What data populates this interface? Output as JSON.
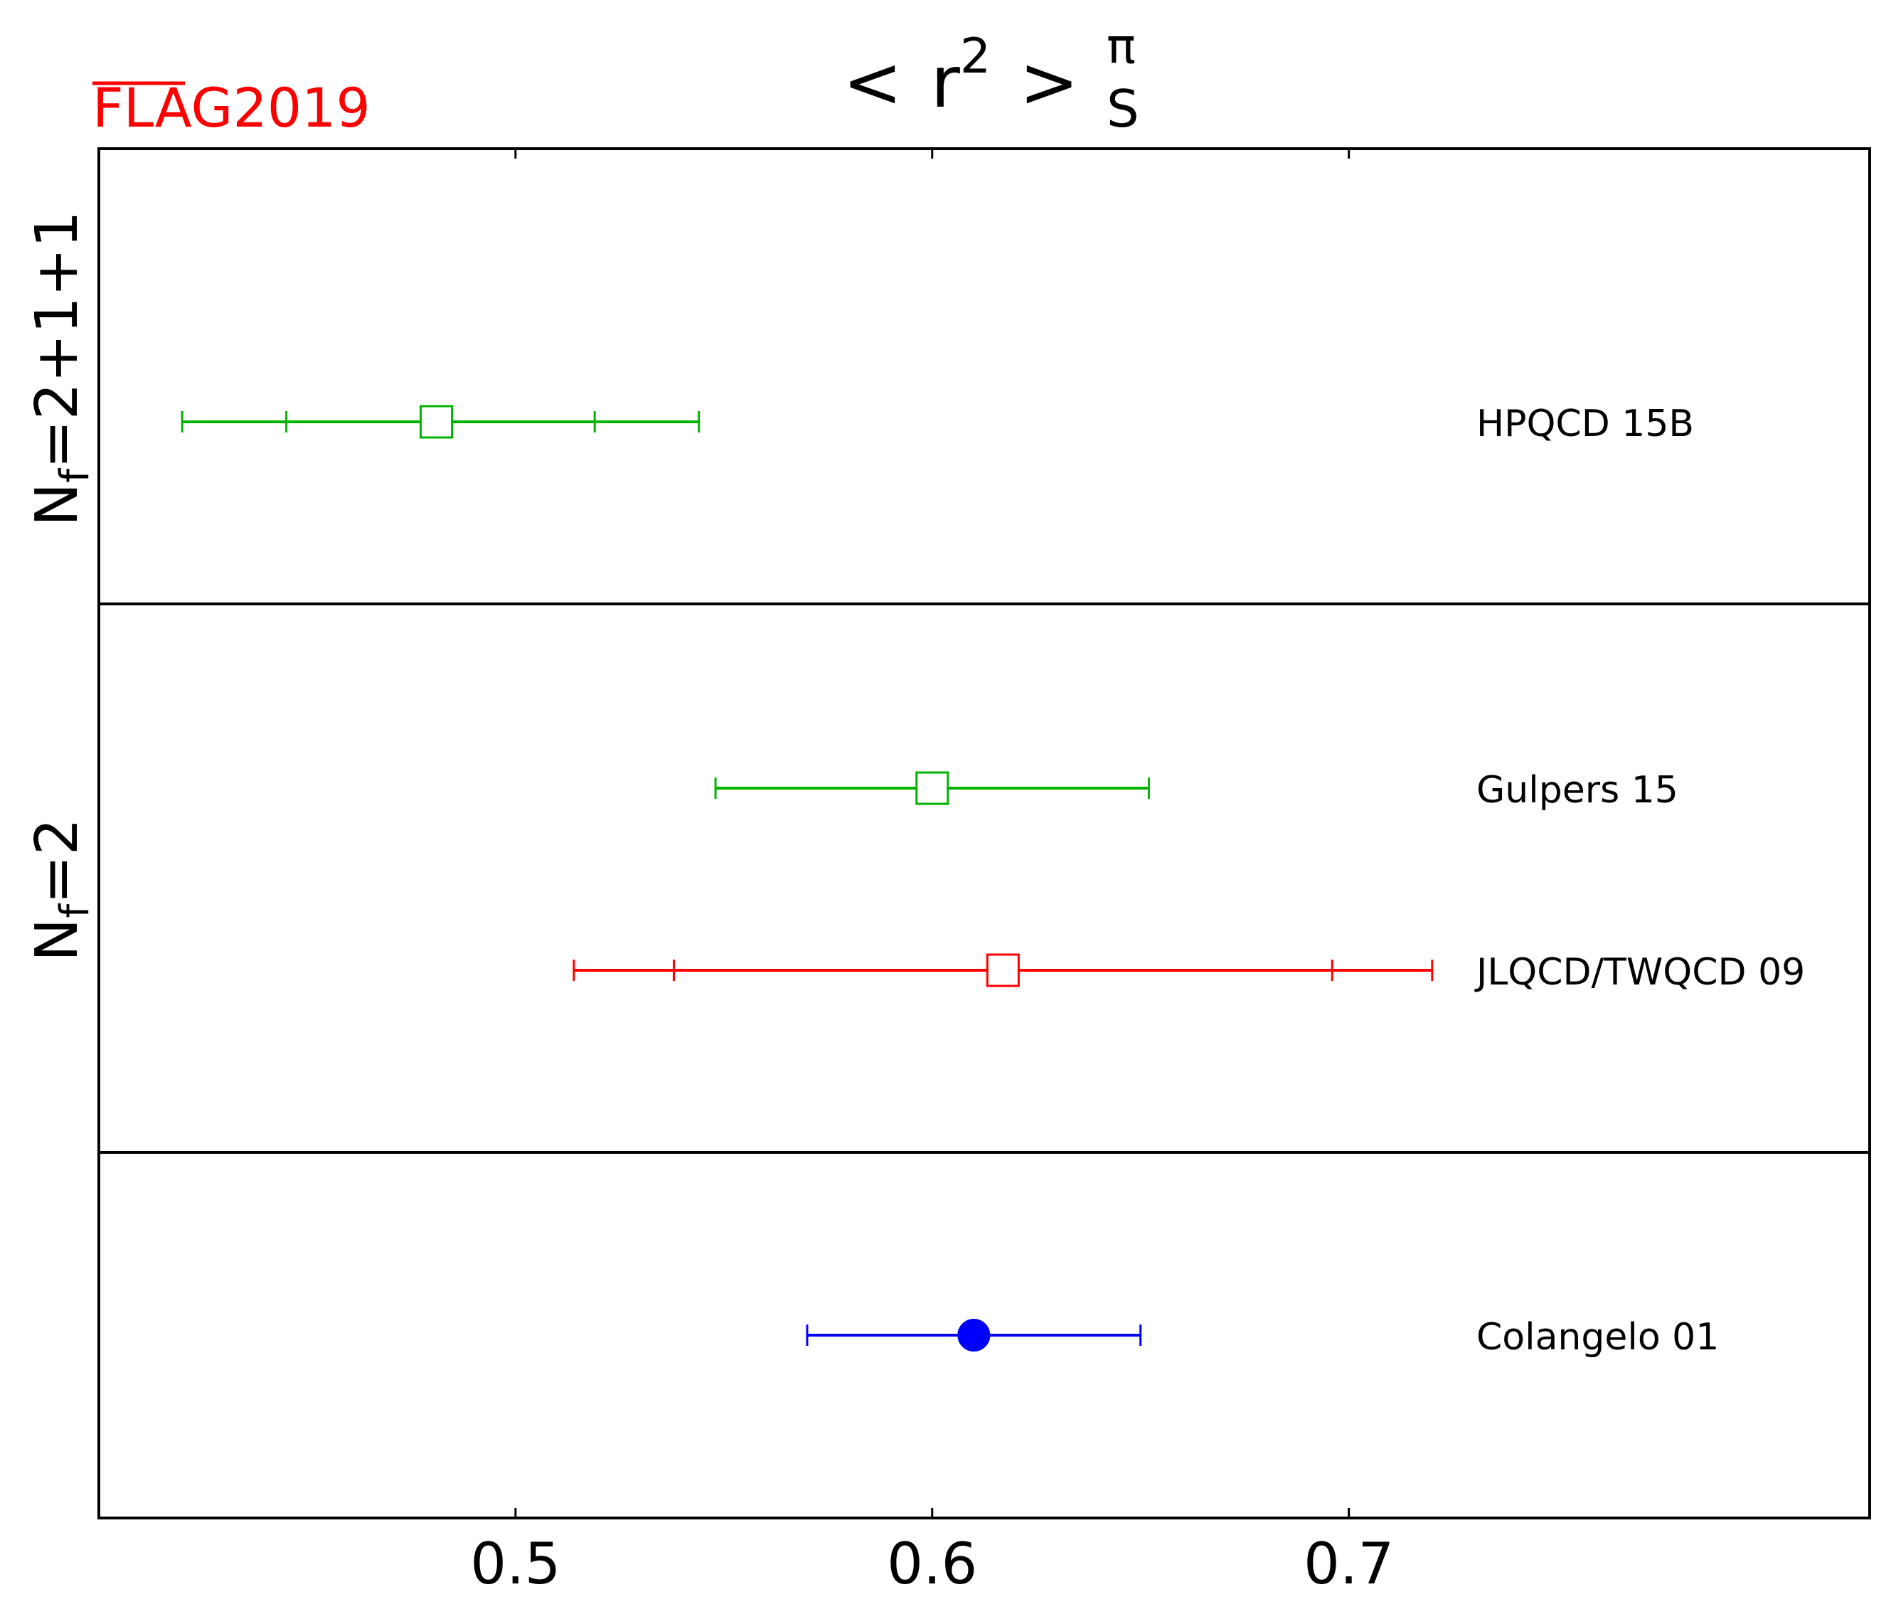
{
  "logo": {
    "flag": "FLAG",
    "year": "2019",
    "color": "#ff0000"
  },
  "chart_data": {
    "type": "scatter",
    "title": {
      "lt": "<",
      "r": "r",
      "sup": "2",
      "gt": ">",
      "sub": "S",
      "super_pi": "π"
    },
    "xlabel": "",
    "ylabel": "",
    "xlim": [
      0.4,
      0.825
    ],
    "xticks": [
      0.5,
      0.6,
      0.7
    ],
    "xtick_labels": [
      "0.5",
      "0.6",
      "0.7"
    ],
    "grid": false,
    "groups": [
      {
        "base": "N",
        "sub": "f",
        "rest": "=2+1+1"
      },
      {
        "base": "N",
        "sub": "f",
        "rest": "=2"
      },
      {
        "base": "",
        "sub": "",
        "rest": ""
      }
    ],
    "points": [
      {
        "label": "HPQCD 15B",
        "group": 0,
        "value": 0.481,
        "stat_err": [
          0.445,
          0.519
        ],
        "total_err": [
          0.42,
          0.544
        ],
        "marker": "open-square",
        "color": "#00b300"
      },
      {
        "label": "Gulpers 15",
        "group": 1,
        "value": 0.6,
        "stat_err": [
          0.548,
          0.652
        ],
        "total_err": [
          0.548,
          0.652
        ],
        "marker": "open-square",
        "color": "#00b300"
      },
      {
        "label": "JLQCD/TWQCD 09",
        "group": 1,
        "value": 0.617,
        "stat_err": [
          0.538,
          0.696
        ],
        "total_err": [
          0.514,
          0.72
        ],
        "marker": "open-square",
        "color": "#ff0000"
      },
      {
        "label": "Colangelo 01",
        "group": 2,
        "value": 0.61,
        "stat_err": [
          0.57,
          0.65
        ],
        "total_err": [
          0.57,
          0.65
        ],
        "marker": "filled-circle",
        "color": "#0000ff"
      }
    ]
  }
}
